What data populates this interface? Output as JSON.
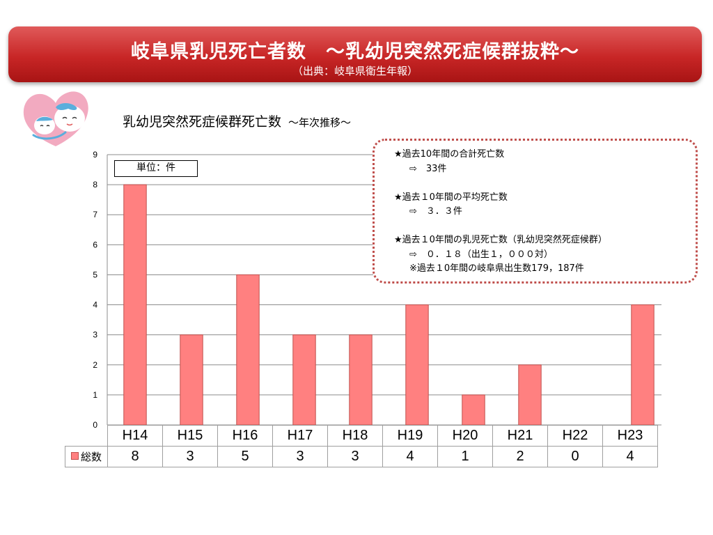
{
  "header": {
    "title": "岐阜県乳児死亡者数　～乳幼児突然死症候群抜粋～",
    "source": "（出典：岐阜県衛生年報）"
  },
  "colors": {
    "banner": "#c82626",
    "bar": "#ff8080",
    "bar_edge": "#c0504d",
    "box_border": "#c0504d"
  },
  "logo": {
    "icon": "mother-and-baby-icon"
  },
  "subtitle": {
    "main": "乳幼児突然死症候群死亡数",
    "small": "～年次推移～"
  },
  "info": {
    "line1": "★過去10年間の合計死亡数",
    "line2": "⇨　33件",
    "line3": "★過去１0年間の平均死亡数",
    "line4": "⇨　３．３件",
    "line5": "★過去１0年間の乳児死亡数（乳幼児突然死症候群）",
    "line6": "⇨　０．１８（出生１，０００対）",
    "line7": "※過去１0年間の岐阜県出生数179，187件"
  },
  "unit_label": "単位：件",
  "legend_label": "総数",
  "chart_data": {
    "type": "bar",
    "categories": [
      "H14",
      "H15",
      "H16",
      "H17",
      "H18",
      "H19",
      "H20",
      "H21",
      "H22",
      "H23"
    ],
    "series": [
      {
        "name": "総数",
        "values": [
          8,
          3,
          5,
          3,
          3,
          4,
          1,
          2,
          0,
          4
        ]
      }
    ],
    "ylim": [
      0,
      9
    ],
    "yticks": [
      "0",
      "1",
      "2",
      "3",
      "4",
      "5",
      "6",
      "7",
      "8",
      "9"
    ],
    "grid": true,
    "data_table": true
  }
}
